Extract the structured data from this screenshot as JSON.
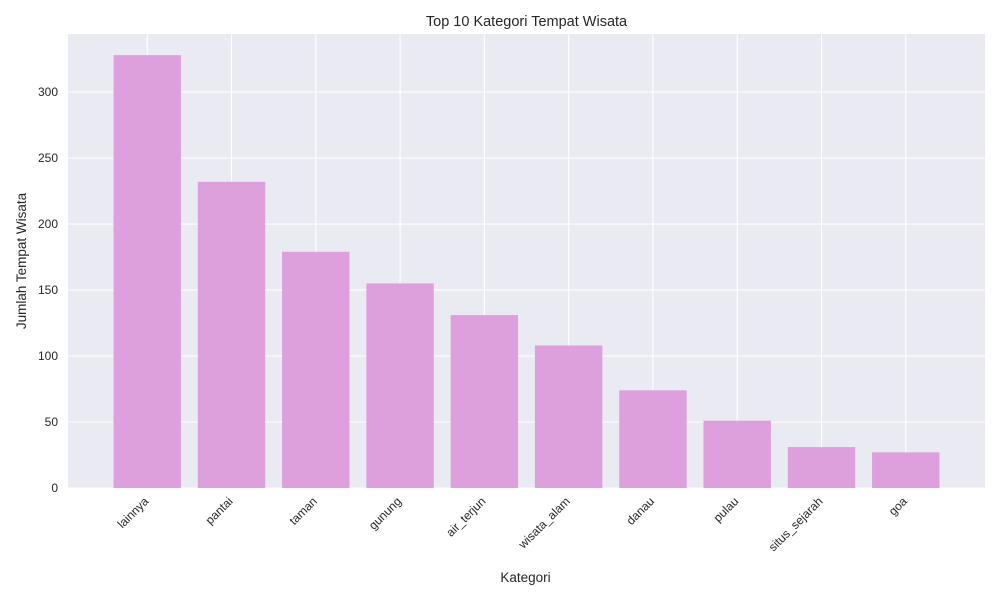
{
  "chart_data": {
    "type": "bar",
    "title": "Top 10 Kategori Tempat Wisata",
    "xlabel": "Kategori",
    "ylabel": "Jumlah Tempat Wisata",
    "categories": [
      "lainnya",
      "pantai",
      "taman",
      "gunung",
      "air_terjun",
      "wisata_alam",
      "danau",
      "pulau",
      "situs_sejarah",
      "goa"
    ],
    "values": [
      328,
      232,
      179,
      155,
      131,
      108,
      74,
      51,
      31,
      27
    ],
    "ylim": [
      0,
      344
    ],
    "yticks": [
      0,
      50,
      100,
      150,
      200,
      250,
      300
    ],
    "grid": true,
    "colors": {
      "bar": "#dda0dd",
      "plot_bg": "#eaeaf2",
      "grid": "#ffffff",
      "text": "#262626"
    }
  }
}
